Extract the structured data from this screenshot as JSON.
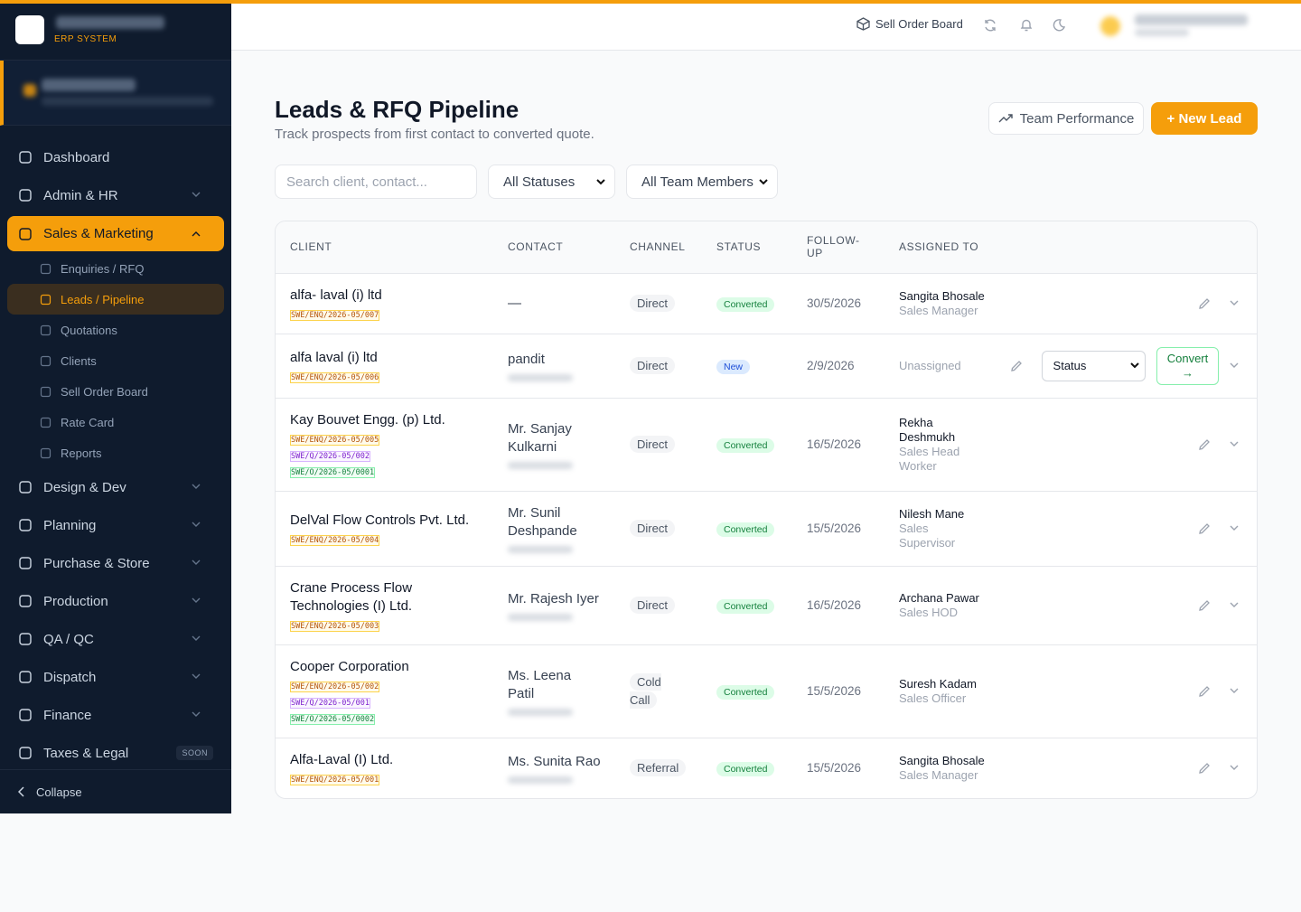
{
  "sidebar": {
    "brand_tag": "ERP SYSTEM",
    "nav": [
      {
        "label": "Dashboard"
      },
      {
        "label": "Admin & HR"
      },
      {
        "label": "Sales & Marketing",
        "active": true,
        "children": [
          {
            "label": "Enquiries / RFQ"
          },
          {
            "label": "Leads / Pipeline",
            "active": true
          },
          {
            "label": "Quotations"
          },
          {
            "label": "Clients"
          },
          {
            "label": "Sell Order Board"
          },
          {
            "label": "Rate Card"
          },
          {
            "label": "Reports"
          }
        ]
      },
      {
        "label": "Design & Dev"
      },
      {
        "label": "Planning"
      },
      {
        "label": "Purchase & Store"
      },
      {
        "label": "Production"
      },
      {
        "label": "QA / QC"
      },
      {
        "label": "Dispatch"
      },
      {
        "label": "Finance"
      },
      {
        "label": "Taxes & Legal",
        "badge": "SOON"
      }
    ],
    "collapse": "Collapse"
  },
  "topbar": {
    "link": "Sell Order Board"
  },
  "page": {
    "title": "Leads & RFQ Pipeline",
    "subtitle": "Track prospects from first contact to converted quote.",
    "team_button": "Team Performance",
    "new_button": "+ New Lead"
  },
  "filters": {
    "search": "Search client, contact...",
    "status": "All Statuses",
    "member": "All Team Members"
  },
  "table": {
    "headers": [
      "CLIENT",
      "CONTACT",
      "CHANNEL",
      "STATUS",
      "FOLLOW-UP",
      "ASSIGNED TO"
    ],
    "rows": [
      {
        "client": "alfa- laval (i) ltd",
        "refs": [
          "SWE/ENQ/2026-05/007"
        ],
        "contact": "—",
        "channel": "Direct",
        "status": "Converted",
        "follow_up": "30/5/2026",
        "assigned": "Sangita Bhosale",
        "role": "Sales Manager"
      },
      {
        "client": "alfa laval (i) ltd",
        "refs": [
          "SWE/ENQ/2026-05/006"
        ],
        "contact": "pandit",
        "channel": "Direct",
        "status": "New",
        "follow_up": "2/9/2026",
        "assigned": "Unassigned",
        "status_select": "Status",
        "convert": "Convert →"
      },
      {
        "client": "Kay Bouvet Engg. (p) Ltd.",
        "refs": [
          "SWE/ENQ/2026-05/005",
          "SWE/Q/2026-05/002",
          "SWE/O/2026-05/0001"
        ],
        "contact": "Mr. Sanjay Kulkarni",
        "channel": "Direct",
        "status": "Converted",
        "follow_up": "16/5/2026",
        "assigned": "Rekha Deshmukh",
        "role": "Sales Head Worker"
      },
      {
        "client": "DelVal Flow Controls Pvt. Ltd.",
        "refs": [
          "SWE/ENQ/2026-05/004"
        ],
        "contact": "Mr. Sunil Deshpande",
        "channel": "Direct",
        "status": "Converted",
        "follow_up": "15/5/2026",
        "assigned": "Nilesh Mane",
        "role": "Sales Supervisor"
      },
      {
        "client": "Crane Process Flow Technologies (I) Ltd.",
        "refs": [
          "SWE/ENQ/2026-05/003"
        ],
        "contact": "Mr. Rajesh Iyer",
        "channel": "Direct",
        "status": "Converted",
        "follow_up": "16/5/2026",
        "assigned": "Archana Pawar",
        "role": "Sales HOD"
      },
      {
        "client": "Cooper Corporation",
        "refs": [
          "SWE/ENQ/2026-05/002",
          "SWE/Q/2026-05/001",
          "SWE/O/2026-05/0002"
        ],
        "contact": "Ms. Leena Patil",
        "channel": "Cold Call",
        "status": "Converted",
        "follow_up": "15/5/2026",
        "assigned": "Suresh Kadam",
        "role": "Sales Officer"
      },
      {
        "client": "Alfa-Laval (I) Ltd.",
        "refs": [
          "SWE/ENQ/2026-05/001"
        ],
        "contact": "Ms. Sunita Rao",
        "channel": "Referral",
        "status": "Converted",
        "follow_up": "15/5/2026",
        "assigned": "Sangita Bhosale",
        "role": "Sales Manager"
      }
    ]
  }
}
